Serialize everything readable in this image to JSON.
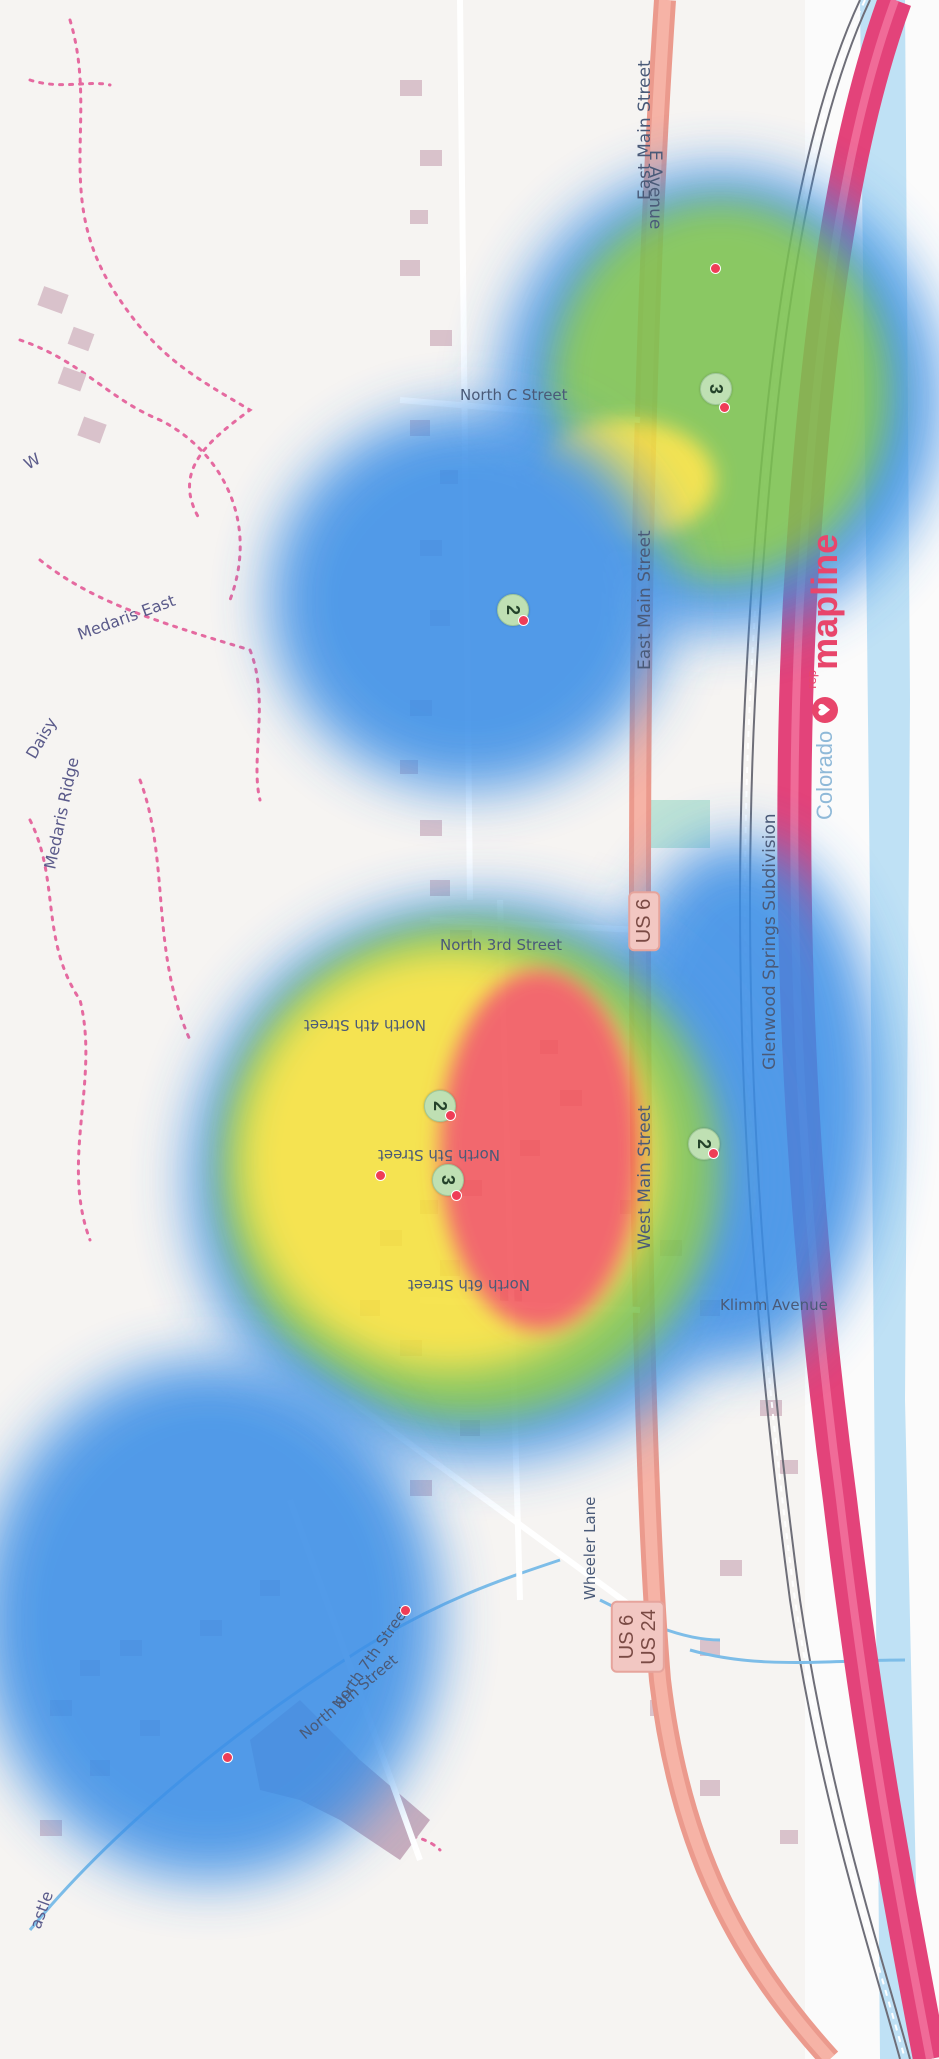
{
  "map": {
    "streets": {
      "east_main_upper": "East Main Street",
      "east_main_lower": "East Main Street",
      "west_main": "West Main Street",
      "e_avenue": "E Avenue",
      "north_c": "North C Street",
      "north_3rd": "North 3rd Street",
      "north_4th": "North 4th Street",
      "north_5th": "North 5th Street",
      "north_6th": "North 6th Street",
      "north_7th": "North 7th Street",
      "north_8th": "North 8th Street",
      "wheeler_lane": "Wheeler Lane",
      "klimm_avenue": "Klimm Avenue",
      "rail": "Glenwood Springs Subdivision"
    },
    "places": {
      "medaris_east": "Medaris East",
      "medaris_ridge": "Medaris Ridge",
      "daisy": "Daisy",
      "castle": "astle",
      "partial_w": "W"
    },
    "shields": {
      "us6_mid": "US 6",
      "us6_low": "US 6",
      "us24_low": "US 24"
    },
    "clusters": [
      "3",
      "2",
      "2",
      "3",
      "2"
    ],
    "logo": {
      "prefix": "Colorado",
      "brand": "mapline",
      "tm": "rep"
    },
    "heat_colors": {
      "low": "#3a8ee6",
      "mid": "#7cc250",
      "high": "#f5e13a",
      "peak": "#f2545b"
    }
  }
}
